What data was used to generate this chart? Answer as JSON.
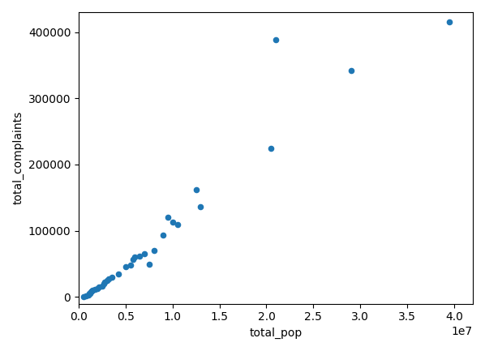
{
  "x": [
    500000,
    800000,
    1000000,
    1100000,
    1200000,
    1300000,
    1400000,
    1500000,
    1700000,
    2000000,
    2200000,
    2500000,
    2700000,
    2800000,
    3000000,
    3200000,
    3500000,
    4200000,
    5000000,
    5500000,
    5800000,
    6000000,
    6500000,
    7000000,
    7500000,
    8000000,
    9000000,
    9500000,
    10000000,
    10500000,
    12500000,
    13000000,
    20500000,
    21000000,
    29000000,
    39500000
  ],
  "y": [
    1000,
    2000,
    3000,
    5000,
    6000,
    8000,
    9000,
    10000,
    12000,
    13000,
    15000,
    17000,
    20000,
    22000,
    25000,
    28000,
    30000,
    35000,
    46000,
    48000,
    57000,
    60000,
    62000,
    65000,
    50000,
    70000,
    93000,
    120000,
    113000,
    110000,
    162000,
    136000,
    225000,
    388000,
    342000,
    415000
  ],
  "color": "#1f77b4",
  "marker": "o",
  "markersize": 20,
  "xlabel": "total_pop",
  "ylabel": "total_complaints",
  "figsize": [
    5.98,
    4.33
  ],
  "dpi": 100,
  "background_color": "#ffffff"
}
